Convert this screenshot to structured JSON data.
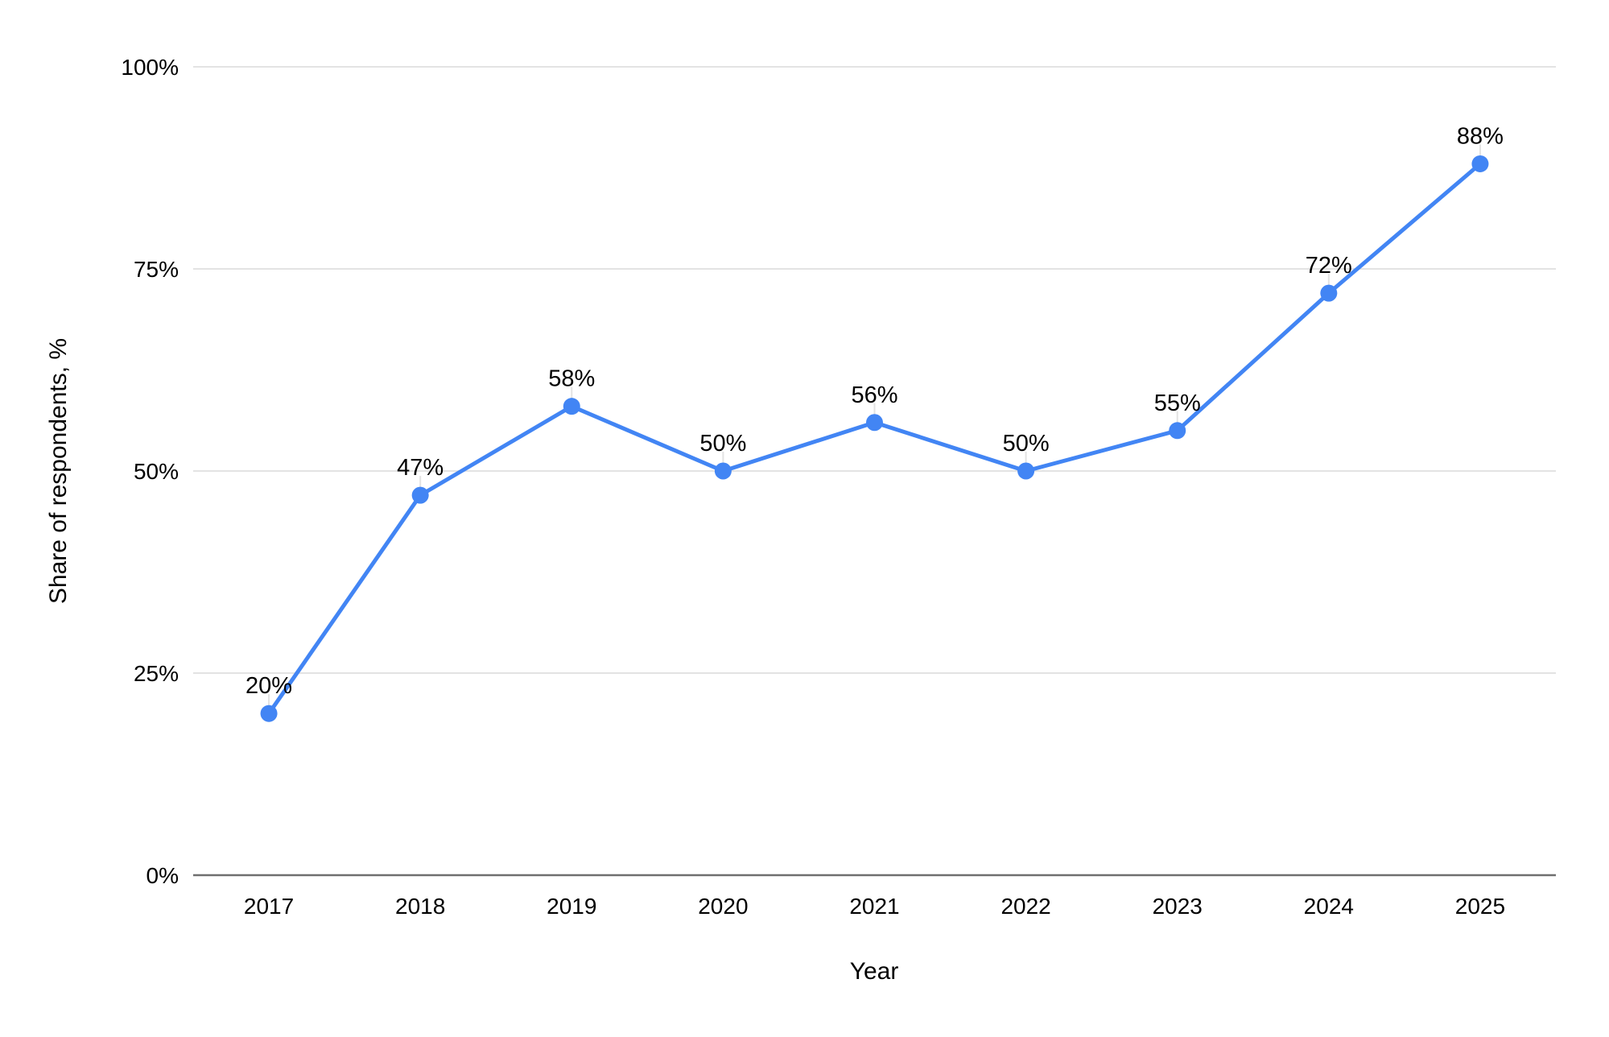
{
  "chart_data": {
    "type": "line",
    "title": "",
    "categories": [
      "2017",
      "2018",
      "2019",
      "2020",
      "2021",
      "2022",
      "2023",
      "2024",
      "2025"
    ],
    "series": [
      {
        "name": "Share of respondents",
        "values": [
          20,
          47,
          58,
          50,
          56,
          50,
          55,
          72,
          88
        ]
      }
    ],
    "data_labels": [
      "20%",
      "47%",
      "58%",
      "50%",
      "56%",
      "50%",
      "55%",
      "72%",
      "88%"
    ],
    "xlabel": "Year",
    "ylabel": "Share of respondents, %",
    "yticks": [
      0,
      25,
      50,
      75,
      100
    ],
    "ytick_labels": [
      "0%",
      "25%",
      "50%",
      "75%",
      "100%"
    ],
    "ylim": [
      0,
      100
    ],
    "grid": true,
    "legend_position": "none",
    "colors": {
      "line": "#4285F4",
      "point": "#4285F4",
      "gridline": "#e3e3e3",
      "axis_line": "#6f6f6f",
      "leader_line": "#e3e3e3",
      "text": "#000000"
    }
  }
}
